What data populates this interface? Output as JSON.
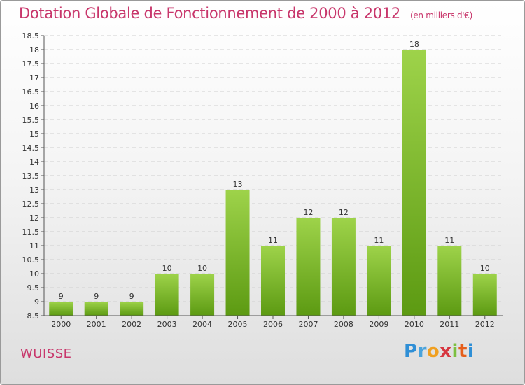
{
  "chart_data": {
    "type": "bar",
    "title": "Dotation Globale de Fonctionnement de 2000 à 2012",
    "subtitle": "(en milliers d'€)",
    "categories": [
      "2000",
      "2001",
      "2002",
      "2003",
      "2004",
      "2005",
      "2006",
      "2007",
      "2008",
      "2009",
      "2010",
      "2011",
      "2012"
    ],
    "values": [
      9,
      9,
      9,
      10,
      10,
      13,
      11,
      12,
      12,
      11,
      18,
      11,
      10
    ],
    "value_labels": [
      "9",
      "9",
      "9",
      "10",
      "10",
      "13",
      "11",
      "12",
      "12",
      "11",
      "18",
      "11",
      "10"
    ],
    "ylim": [
      8.5,
      18.5
    ],
    "yticks": [
      "8.5",
      "9",
      "9.5",
      "10",
      "10.5",
      "11",
      "11.5",
      "12",
      "12.5",
      "13",
      "13.5",
      "14",
      "14.5",
      "15",
      "15.5",
      "16",
      "16.5",
      "17",
      "17.5",
      "18",
      "18.5"
    ],
    "grid": true,
    "colors": {
      "bar_top": "#9ed34a",
      "bar_bottom": "#5c9a12",
      "grid": "#cfcfcf",
      "axis": "#555555"
    }
  },
  "place": "WUISSE",
  "logo": {
    "letters": [
      "P",
      "r",
      "o",
      "x",
      "i",
      "t",
      "i"
    ],
    "colors": [
      "#2f8fd6",
      "#4aa3dc",
      "#f0a020",
      "#d7363f",
      "#7cc040",
      "#e65f1c",
      "#2f8fd6"
    ]
  }
}
